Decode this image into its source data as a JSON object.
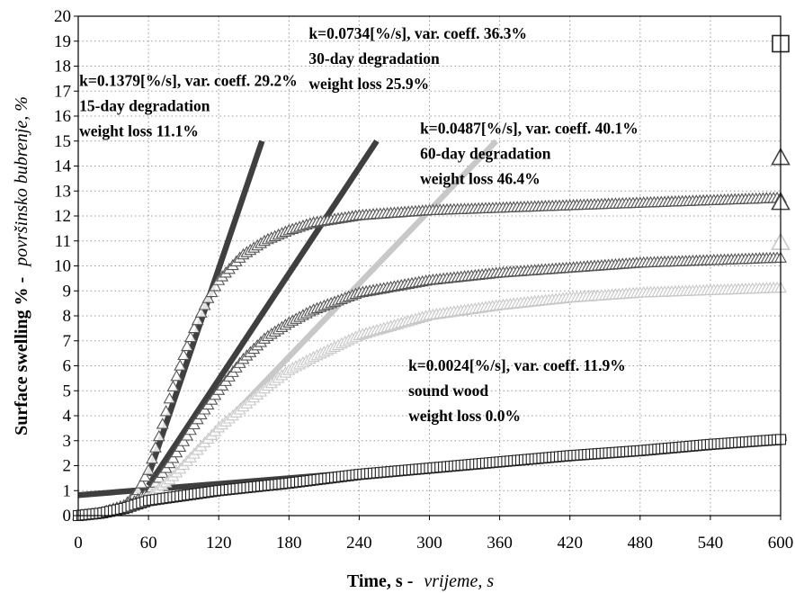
{
  "chart_data": {
    "type": "scatter",
    "xlabel": "Time, s -",
    "xlabel_italic": "vrijeme, s",
    "ylabel": "Surface swelling % -",
    "ylabel_italic": "površinsko bubrenje, %",
    "xlim": [
      0,
      600
    ],
    "ylim": [
      0,
      20
    ],
    "xticks": [
      0,
      60,
      120,
      180,
      240,
      300,
      360,
      420,
      480,
      540,
      600
    ],
    "yticks": [
      0,
      1,
      2,
      3,
      4,
      5,
      6,
      7,
      8,
      9,
      10,
      11,
      12,
      13,
      14,
      15,
      16,
      17,
      18,
      19,
      20
    ],
    "grid": true,
    "series": [
      {
        "marker": "triangle",
        "color": "#555555",
        "label_lines": [
          "k=0.1379[%/s], var. coeff. 29.2%",
          "15-day degradation",
          "weight loss 11.1%"
        ],
        "x": [
          0,
          20,
          40,
          50,
          60,
          70,
          80,
          90,
          100,
          110,
          120,
          140,
          160,
          180,
          200,
          240,
          300,
          360,
          420,
          480,
          540,
          600
        ],
        "y": [
          0,
          0.1,
          0.4,
          0.9,
          1.8,
          3.3,
          5.0,
          6.4,
          7.6,
          8.6,
          9.4,
          10.4,
          11.0,
          11.4,
          11.7,
          12.0,
          12.2,
          12.3,
          12.4,
          12.5,
          12.6,
          12.7
        ],
        "endpoint": {
          "x": 600,
          "y": 12.5
        },
        "fit": {
          "k": 0.1379,
          "x": [
            60,
            157
          ],
          "y": [
            1.6,
            15
          ]
        }
      },
      {
        "marker": "triangle",
        "color": "#555555",
        "label_lines": [
          "k=0.0734[%/s], var. coeff. 36.3%",
          "30-day degradation",
          "weight loss 25.9%"
        ],
        "x": [
          0,
          20,
          40,
          60,
          80,
          100,
          120,
          140,
          160,
          180,
          200,
          240,
          300,
          360,
          420,
          480,
          540,
          600
        ],
        "y": [
          0,
          0.1,
          0.3,
          0.9,
          2.2,
          3.7,
          5.0,
          6.2,
          7.1,
          7.7,
          8.2,
          8.9,
          9.4,
          9.7,
          9.9,
          10.1,
          10.2,
          10.3
        ],
        "endpoint": {
          "x": 600,
          "y": 14.3
        },
        "fit": {
          "k": 0.0734,
          "x": [
            60,
            255
          ],
          "y": [
            1.2,
            15
          ]
        }
      },
      {
        "marker": "triangle",
        "color": "#c8c8c8",
        "label_lines": [
          "k=0.0487[%/s], var. coeff. 40.1%",
          "60-day degradation",
          "weight loss 46.4%"
        ],
        "x": [
          0,
          20,
          40,
          60,
          80,
          100,
          120,
          140,
          160,
          180,
          200,
          240,
          300,
          360,
          420,
          480,
          540,
          600
        ],
        "y": [
          0,
          0.1,
          0.2,
          0.7,
          1.5,
          2.5,
          3.5,
          4.3,
          5.1,
          5.8,
          6.3,
          7.2,
          8.0,
          8.4,
          8.7,
          8.9,
          9.0,
          9.1
        ],
        "endpoint": {
          "x": 600,
          "y": 10.9
        },
        "fit": {
          "k": 0.0487,
          "x": [
            60,
            357
          ],
          "y": [
            0.5,
            15
          ]
        }
      },
      {
        "marker": "square",
        "color": "#222222",
        "label_lines": [
          "k=0.0024[%/s], var. coeff. 11.9%",
          "sound wood",
          "weight loss 0.0%"
        ],
        "x": [
          0,
          20,
          40,
          60,
          90,
          120,
          180,
          240,
          300,
          360,
          420,
          480,
          540,
          600
        ],
        "y": [
          0,
          0.1,
          0.3,
          0.6,
          0.8,
          1.0,
          1.3,
          1.65,
          1.9,
          2.15,
          2.4,
          2.6,
          2.85,
          3.05
        ],
        "endpoint": {
          "x": 600,
          "y": 18.9
        },
        "fit": {
          "k": 0.0024,
          "x": [
            0,
            605
          ],
          "y": [
            0.82,
            3.1
          ]
        }
      }
    ]
  }
}
